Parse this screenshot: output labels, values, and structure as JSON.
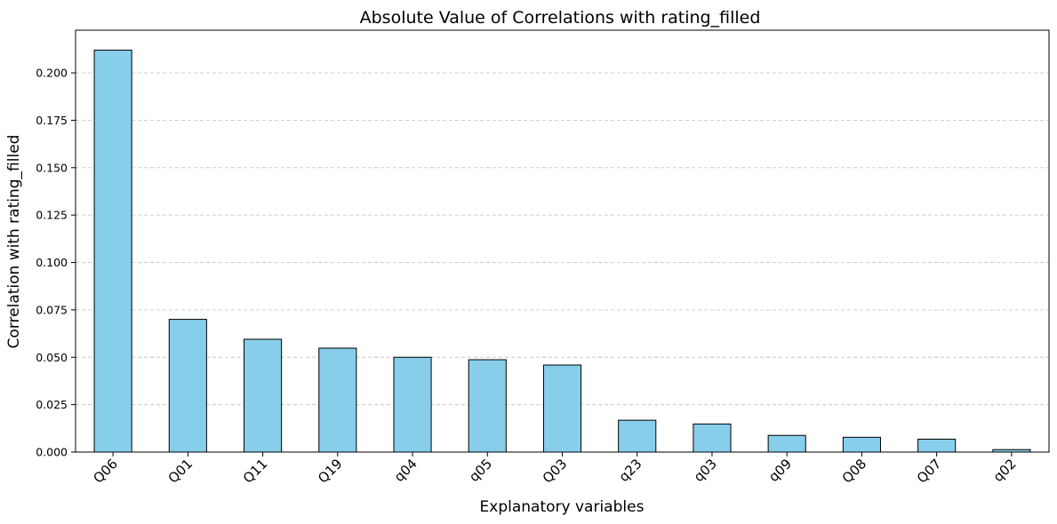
{
  "chart_data": {
    "type": "bar",
    "title": "Absolute Value of Correlations with rating_filled",
    "xlabel": "Explanatory variables",
    "ylabel": "Correlation with rating_filled",
    "categories": [
      "Q06",
      "Q01",
      "Q11",
      "Q19",
      "q04",
      "q05",
      "Q03",
      "q23",
      "q03",
      "q09",
      "Q08",
      "Q07",
      "q02"
    ],
    "values": [
      0.212,
      0.07,
      0.0595,
      0.0548,
      0.05,
      0.0487,
      0.0459,
      0.0168,
      0.0148,
      0.0088,
      0.0078,
      0.0068,
      0.0013
    ],
    "ylim": [
      0,
      0.2225
    ],
    "yticks": [
      0.0,
      0.025,
      0.05,
      0.075,
      0.1,
      0.125,
      0.15,
      0.175,
      0.2
    ],
    "ytick_labels": [
      "0.000",
      "0.025",
      "0.050",
      "0.075",
      "0.100",
      "0.125",
      "0.150",
      "0.175",
      "0.200"
    ],
    "grid": "y-dashed",
    "bar_color": "#87CEEB",
    "bar_edge_color": "#000000",
    "grid_color": "#c8c8c8"
  }
}
